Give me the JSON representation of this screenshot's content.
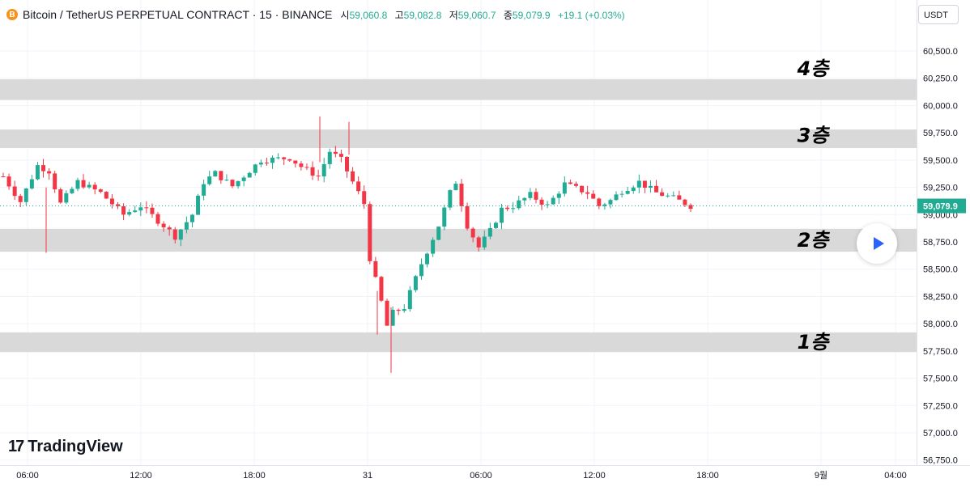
{
  "header": {
    "coin_icon": "B",
    "title": "Bitcoin / TetherUS PERPETUAL CONTRACT · 15 · BINANCE",
    "open_label": "시",
    "open_value": "59,060.8",
    "high_label": "고",
    "high_value": "59,082.8",
    "low_label": "저",
    "low_value": "59,060.7",
    "close_label": "종",
    "close_value": "59,079.9",
    "change": "+19.1 (+0.03%)"
  },
  "currency": "USDT",
  "logo": {
    "mark": "17",
    "text": "TradingView"
  },
  "chart_data": {
    "type": "candlestick",
    "y_range": [
      56750,
      60750
    ],
    "y_ticks": [
      "60,500.0",
      "60,250.0",
      "60,000.0",
      "59,750.0",
      "59,500.0",
      "59,250.0",
      "59,000.0",
      "58,750.0",
      "58,500.0",
      "58,250.0",
      "58,000.0",
      "57,750.0",
      "57,500.0",
      "57,250.0",
      "57,000.0",
      "56,750.0"
    ],
    "y_tick_values": [
      60500,
      60250,
      60000,
      59750,
      59500,
      59250,
      59000,
      58750,
      58500,
      58250,
      58000,
      57750,
      57500,
      57250,
      57000,
      56750
    ],
    "x_ticks": [
      "06:00",
      "12:00",
      "18:00",
      "31",
      "06:00",
      "12:00",
      "18:00",
      "9월",
      "04:00"
    ],
    "last_price": "59,079.9",
    "last_price_value": 59079.9,
    "zones": [
      {
        "label": "4층",
        "low": 60050,
        "high": 60240
      },
      {
        "label": "3층",
        "low": 59610,
        "high": 59780
      },
      {
        "label": "2층",
        "low": 58660,
        "high": 58870
      },
      {
        "label": "1층",
        "low": 57740,
        "high": 57920
      }
    ],
    "colors": {
      "up": "#22ab94",
      "down": "#f23645",
      "zone": "#d9d9d9",
      "grid": "#f0f3fa",
      "price_tag": "#22ab94"
    },
    "waypoints": [
      [
        0,
        59350
      ],
      [
        3,
        59120
      ],
      [
        6,
        59450
      ],
      [
        8,
        59400
      ],
      [
        10,
        59100
      ],
      [
        13,
        59300
      ],
      [
        17,
        59200
      ],
      [
        21,
        59000
      ],
      [
        24,
        59080
      ],
      [
        28,
        58900
      ],
      [
        30,
        58800
      ],
      [
        33,
        59000
      ],
      [
        35,
        59300
      ],
      [
        37,
        59380
      ],
      [
        40,
        59260
      ],
      [
        45,
        59500
      ],
      [
        50,
        59520
      ],
      [
        52,
        59440
      ],
      [
        55,
        59350
      ],
      [
        57,
        59580
      ],
      [
        59,
        59500
      ],
      [
        61,
        59300
      ],
      [
        63,
        59100
      ],
      [
        64,
        58600
      ],
      [
        66,
        58200
      ],
      [
        67,
        57980
      ],
      [
        68,
        58100
      ],
      [
        70,
        58150
      ],
      [
        73,
        58550
      ],
      [
        76,
        58900
      ],
      [
        78,
        59200
      ],
      [
        79,
        59300
      ],
      [
        81,
        58900
      ],
      [
        83,
        58700
      ],
      [
        85,
        58850
      ],
      [
        87,
        59050
      ],
      [
        89,
        59080
      ],
      [
        92,
        59180
      ],
      [
        95,
        59080
      ],
      [
        98,
        59280
      ],
      [
        102,
        59200
      ],
      [
        104,
        59080
      ],
      [
        106,
        59130
      ],
      [
        108,
        59220
      ],
      [
        111,
        59300
      ],
      [
        114,
        59200
      ],
      [
        117,
        59150
      ],
      [
        120,
        59080
      ]
    ]
  }
}
